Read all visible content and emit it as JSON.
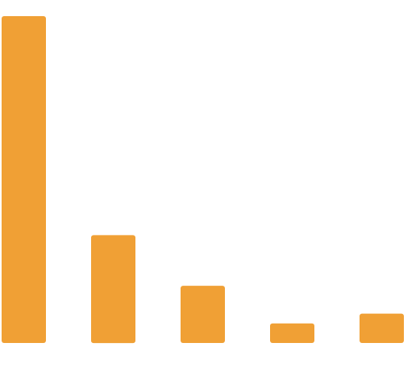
{
  "chart_data": {
    "type": "bar",
    "categories": [
      "",
      "",
      "",
      "",
      ""
    ],
    "values": [
      100,
      33,
      17.5,
      6,
      9
    ],
    "ylim": [
      0,
      100
    ],
    "title": "",
    "xlabel": "",
    "ylabel": "",
    "grid": false,
    "legend": "none",
    "bar_color": "#F0A035",
    "background_color": "#FFFFFF"
  }
}
